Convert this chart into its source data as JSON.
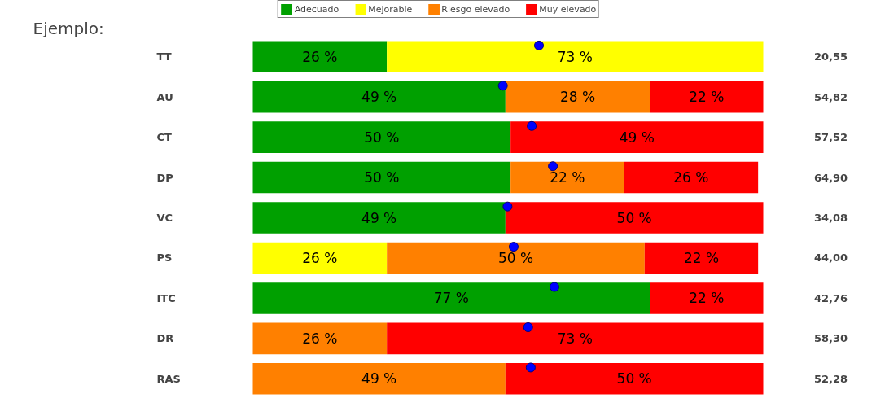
{
  "chart_data": {
    "type": "bar",
    "orientation": "horizontal",
    "stacked": true,
    "title": "Ejemplo:",
    "categories": [
      "TT",
      "AU",
      "CT",
      "DP",
      "VC",
      "PS",
      "ITC",
      "DR",
      "RAS"
    ],
    "series": [
      {
        "name": "Adecuado",
        "color": "#00a000",
        "values": [
          26,
          49,
          50,
          50,
          49,
          null,
          77,
          null,
          null
        ],
        "value_labels": [
          "26 %",
          "49 %",
          "50 %",
          "50 %",
          "49 %",
          null,
          "77 %",
          null,
          null
        ]
      },
      {
        "name": "Mejorable",
        "color": "#ffff00",
        "values": [
          73,
          null,
          null,
          null,
          null,
          26,
          null,
          null,
          null
        ],
        "value_labels": [
          "73 %",
          null,
          null,
          null,
          null,
          "26 %",
          null,
          null,
          null
        ]
      },
      {
        "name": "Riesgo elevado",
        "color": "#ff8000",
        "values": [
          null,
          28,
          null,
          22,
          null,
          50,
          null,
          26,
          49
        ],
        "value_labels": [
          null,
          "28 %",
          null,
          "22 %",
          null,
          "50 %",
          null,
          "26 %",
          "49 %"
        ]
      },
      {
        "name": "Muy elevado",
        "color": "#ff0000",
        "values": [
          null,
          22,
          49,
          26,
          50,
          22,
          22,
          73,
          50
        ],
        "value_labels": [
          null,
          "22 %",
          "49 %",
          "26 %",
          "50 %",
          "22 %",
          "22 %",
          "73 %",
          "50 %"
        ]
      },
      {
        "type": "scatter",
        "color": "#0000ff",
        "values": [
          55.5,
          48.5,
          54.1,
          58.2,
          49.4,
          50.6,
          58.5,
          53.4,
          53.9
        ]
      }
    ],
    "annotations": [
      "20,55",
      "54,82",
      "57,52",
      "64,90",
      "34,08",
      "44,00",
      "42,76",
      "58,30",
      "52,28"
    ],
    "legend": "top",
    "grid": false,
    "tick_labels": "y"
  }
}
